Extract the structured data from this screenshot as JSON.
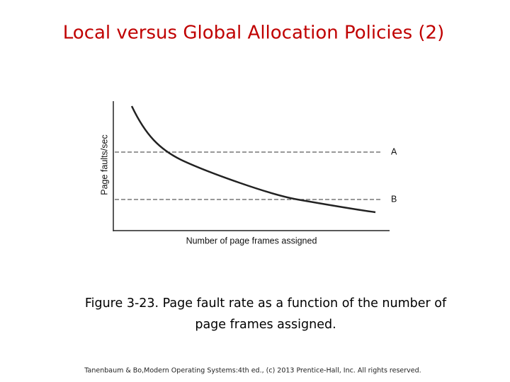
{
  "header": {
    "title": "Local versus Global Allocation Policies (2)"
  },
  "figure": {
    "y_axis_label": "Page faults/sec",
    "x_axis_label": "Number of page frames assigned",
    "line_labels": [
      "A",
      "B"
    ]
  },
  "caption": [
    "Figure 3-23. Page fault rate as a function of the number of",
    "page frames assigned."
  ],
  "footer": "Tanenbaum & Bo,Modern  Operating Systems:4th ed., (c) 2013 Prentice-Hall, Inc. All rights reserved."
}
